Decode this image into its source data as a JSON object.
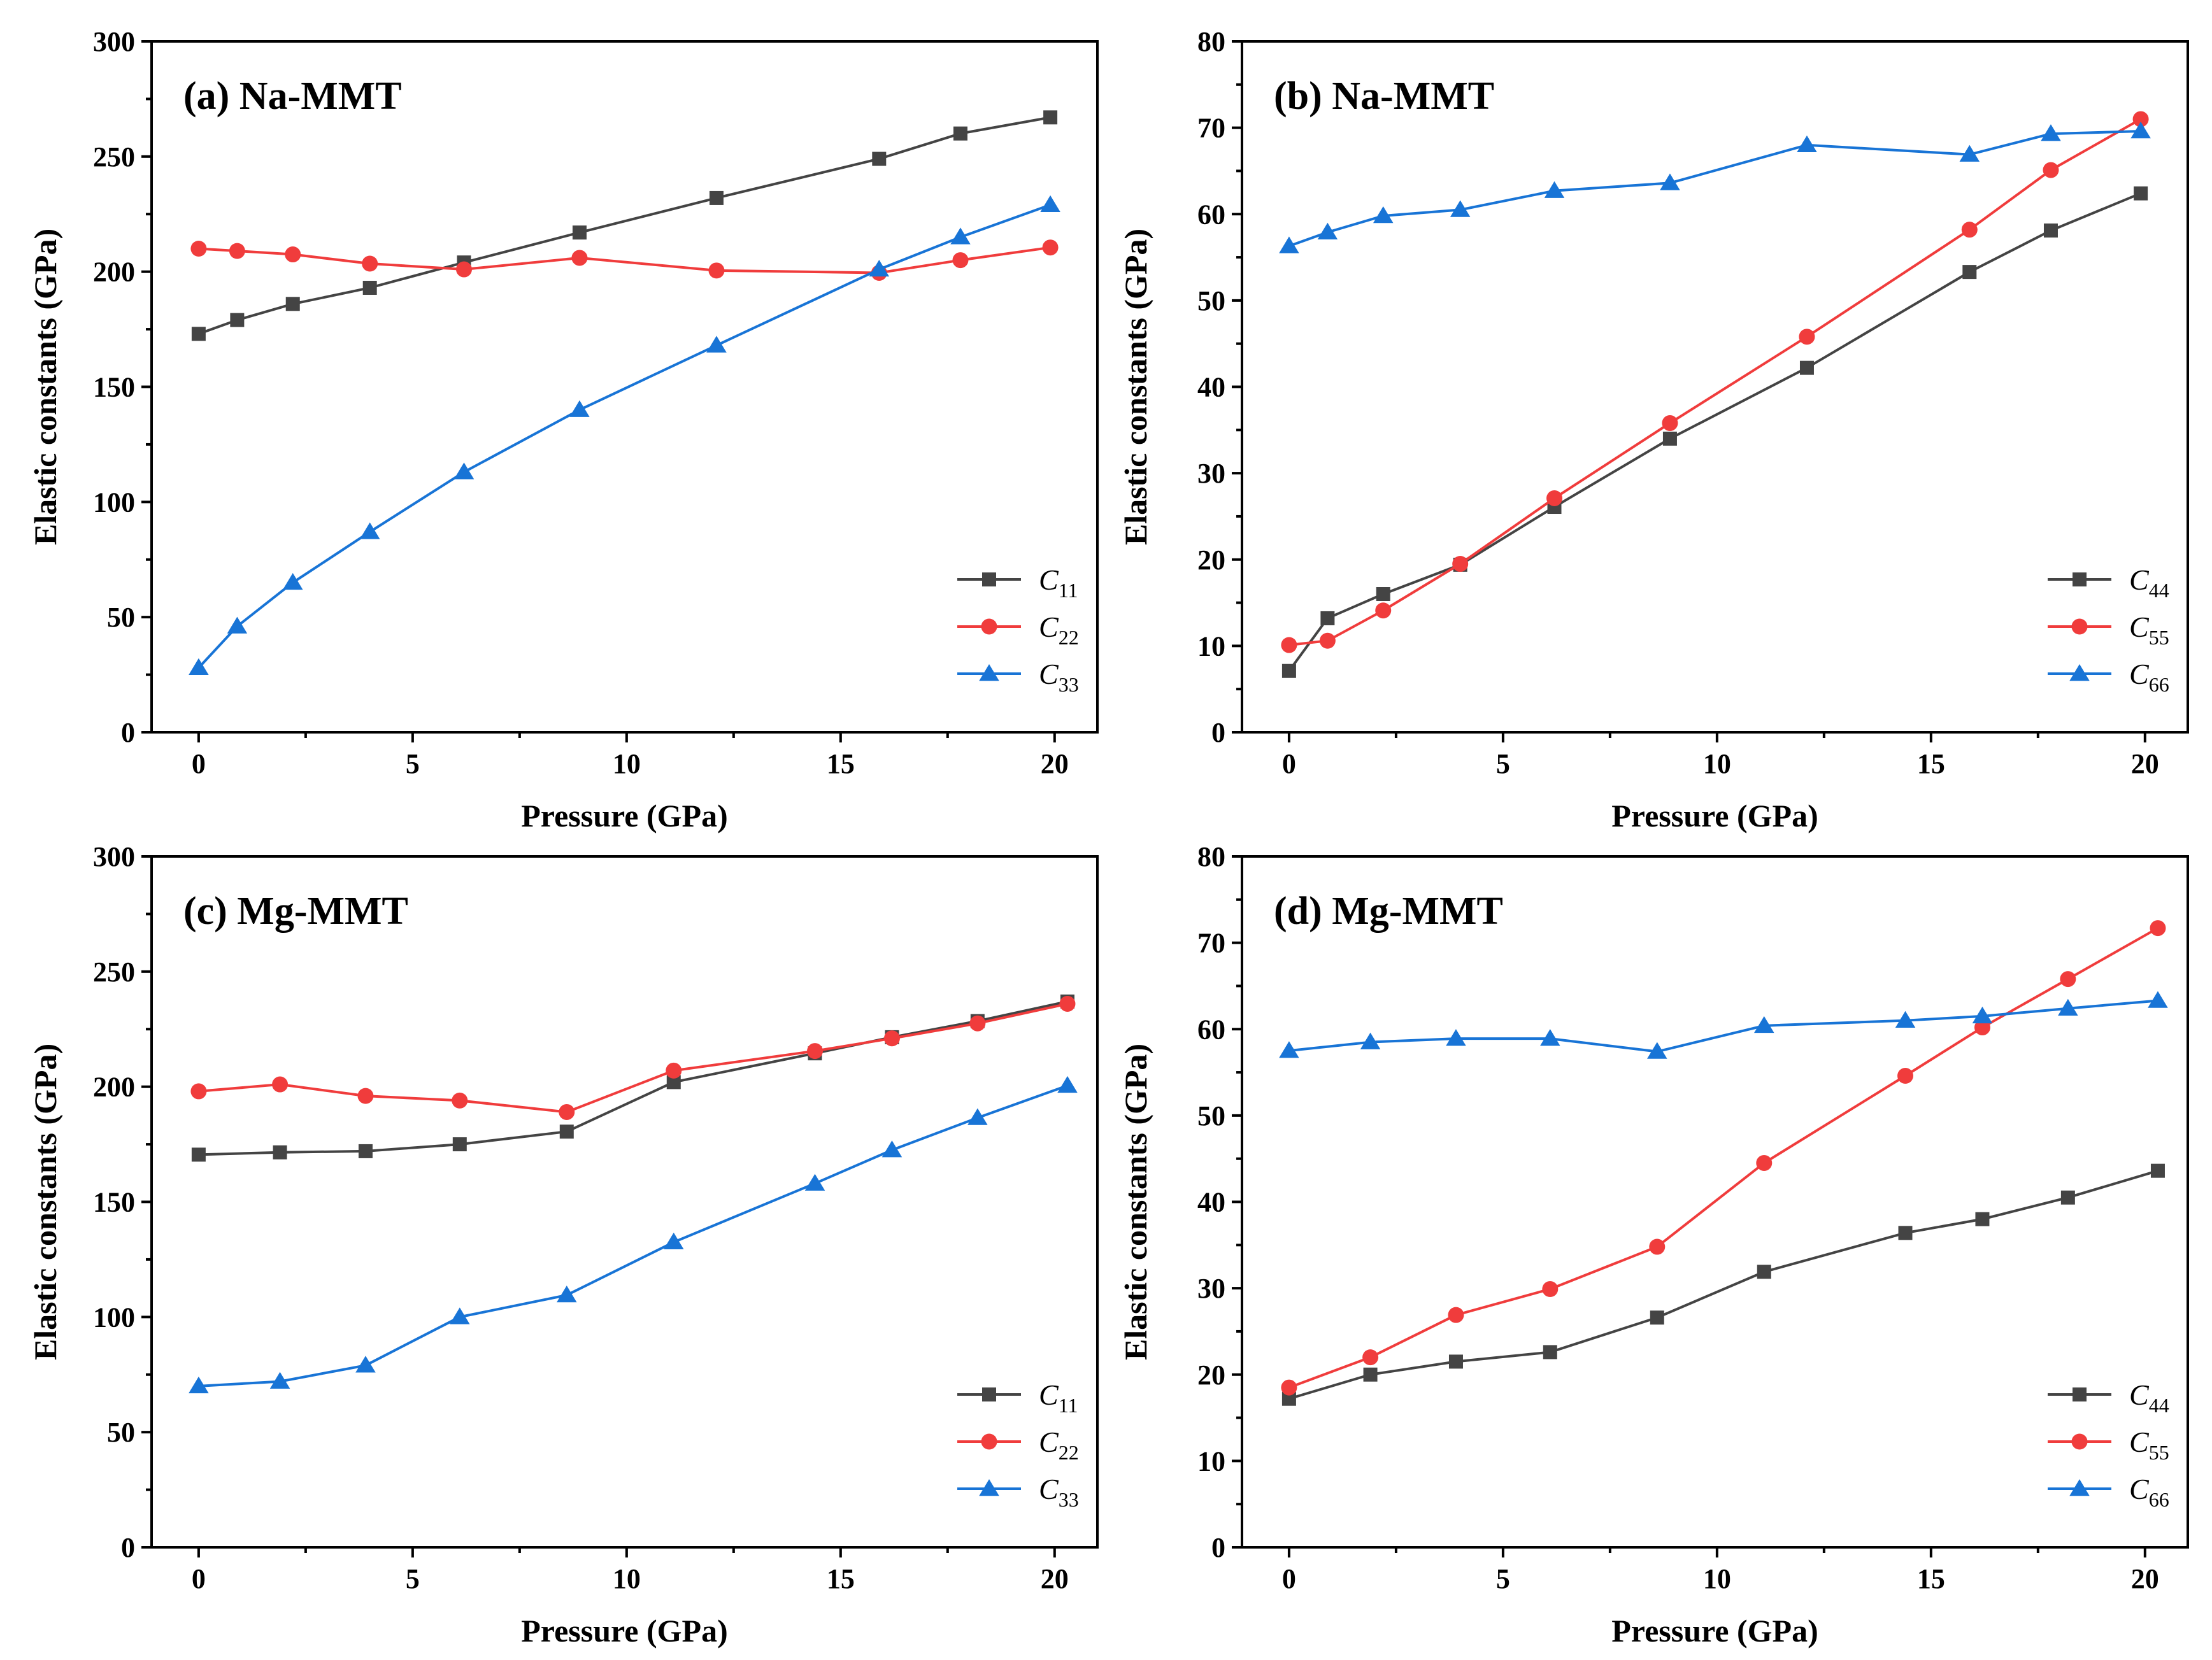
{
  "chart_data": [
    {
      "type": "line",
      "panel": "a",
      "title": "(a) Na-MMT",
      "xlabel": "Pressure (GPa)",
      "ylabel": "Elastic constants (GPa)",
      "xlim": [
        -1.1,
        21
      ],
      "ylim": [
        0,
        300
      ],
      "xticks": [
        "0",
        "5",
        "10",
        "15",
        "20"
      ],
      "yticks": [
        "0",
        "50",
        "100",
        "150",
        "200",
        "250",
        "300"
      ],
      "legend_position": "bottom-right",
      "series": [
        {
          "name": "C11",
          "letter": "C",
          "sub": "11",
          "color": "#444444",
          "marker": "square",
          "x": [
            0,
            0.9,
            2.2,
            4,
            6.2,
            8.9,
            12.1,
            15.9,
            17.8,
            19.9
          ],
          "y": [
            173,
            179,
            186,
            193,
            204,
            217,
            232,
            249,
            260,
            267
          ]
        },
        {
          "name": "C22",
          "letter": "C",
          "sub": "22",
          "color": "#f03c3c",
          "marker": "circle",
          "x": [
            0,
            0.9,
            2.2,
            4,
            6.2,
            8.9,
            12.1,
            15.9,
            17.8,
            19.9
          ],
          "y": [
            210,
            209,
            207.5,
            203.5,
            201,
            206,
            200.5,
            199.5,
            205,
            210.5
          ]
        },
        {
          "name": "C33",
          "letter": "C",
          "sub": "33",
          "color": "#1874d6",
          "marker": "triangle",
          "x": [
            0,
            0.9,
            2.2,
            4,
            6.2,
            8.9,
            12.1,
            15.9,
            17.8,
            19.9
          ],
          "y": [
            28,
            46,
            65,
            87,
            113,
            140,
            168,
            201,
            215,
            229
          ]
        }
      ]
    },
    {
      "type": "line",
      "panel": "b",
      "title": "(b) Na-MMT",
      "xlabel": "Pressure (GPa)",
      "ylabel": "Elastic constants (GPa)",
      "xlim": [
        -1.1,
        21
      ],
      "ylim": [
        0,
        80
      ],
      "xticks": [
        "0",
        "5",
        "10",
        "15",
        "20"
      ],
      "yticks": [
        "0",
        "10",
        "20",
        "30",
        "40",
        "50",
        "60",
        "70",
        "80"
      ],
      "legend_position": "bottom-right",
      "series": [
        {
          "name": "C44",
          "letter": "C",
          "sub": "44",
          "color": "#444444",
          "marker": "square",
          "x": [
            0,
            0.9,
            2.2,
            4,
            6.2,
            8.9,
            12.1,
            15.9,
            17.8,
            19.9
          ],
          "y": [
            7.1,
            13.2,
            16,
            19.4,
            26.1,
            34,
            42.2,
            53.3,
            58.1,
            62.4
          ]
        },
        {
          "name": "C55",
          "letter": "C",
          "sub": "55",
          "color": "#f03c3c",
          "marker": "circle",
          "x": [
            0,
            0.9,
            2.2,
            4,
            6.2,
            8.9,
            12.1,
            15.9,
            17.8,
            19.9
          ],
          "y": [
            10.1,
            10.6,
            14.1,
            19.5,
            27.1,
            35.8,
            45.8,
            58.2,
            65.1,
            71
          ]
        },
        {
          "name": "C66",
          "letter": "C",
          "sub": "66",
          "color": "#1874d6",
          "marker": "triangle",
          "x": [
            0,
            0.9,
            2.2,
            4,
            6.2,
            8.9,
            12.1,
            15.9,
            17.8,
            19.9
          ],
          "y": [
            56.3,
            57.9,
            59.8,
            60.5,
            62.7,
            63.6,
            68,
            66.9,
            69.3,
            69.6
          ]
        }
      ]
    },
    {
      "type": "line",
      "panel": "c",
      "title": "(c) Mg-MMT",
      "xlabel": "Pressure (GPa)",
      "ylabel": "Elastic constants (GPa)",
      "xlim": [
        -1.1,
        21
      ],
      "ylim": [
        0,
        300
      ],
      "xticks": [
        "0",
        "5",
        "10",
        "15",
        "20"
      ],
      "yticks": [
        "0",
        "50",
        "100",
        "150",
        "200",
        "250",
        "300"
      ],
      "legend_position": "bottom-right",
      "series": [
        {
          "name": "C11",
          "letter": "C",
          "sub": "11",
          "color": "#444444",
          "marker": "square",
          "x": [
            0,
            1.9,
            3.9,
            6.1,
            8.6,
            11.1,
            14.4,
            16.2,
            18.2,
            20.3
          ],
          "y": [
            170.5,
            171.5,
            172,
            175,
            180.5,
            202,
            214.5,
            221.5,
            228.5,
            237
          ]
        },
        {
          "name": "C22",
          "letter": "C",
          "sub": "22",
          "color": "#f03c3c",
          "marker": "circle",
          "x": [
            0,
            1.9,
            3.9,
            6.1,
            8.6,
            11.1,
            14.4,
            16.2,
            18.2,
            20.3
          ],
          "y": [
            198,
            201,
            196,
            194,
            189,
            207,
            215.5,
            221,
            227.5,
            236
          ]
        },
        {
          "name": "C33",
          "letter": "C",
          "sub": "33",
          "color": "#1874d6",
          "marker": "triangle",
          "x": [
            0,
            1.9,
            3.9,
            6.1,
            8.6,
            11.1,
            14.4,
            16.2,
            18.2,
            20.3
          ],
          "y": [
            70,
            72,
            79,
            100,
            109.5,
            132.5,
            158,
            172.5,
            186.5,
            200.5
          ]
        }
      ]
    },
    {
      "type": "line",
      "panel": "d",
      "title": "(d) Mg-MMT",
      "xlabel": "Pressure (GPa)",
      "ylabel": "Elastic constants (GPa)",
      "xlim": [
        -1.1,
        21
      ],
      "ylim": [
        0,
        80
      ],
      "xticks": [
        "0",
        "5",
        "10",
        "15",
        "20"
      ],
      "yticks": [
        "0",
        "10",
        "20",
        "30",
        "40",
        "50",
        "60",
        "70",
        "80"
      ],
      "legend_position": "bottom-right",
      "series": [
        {
          "name": "C44",
          "letter": "C",
          "sub": "44",
          "color": "#444444",
          "marker": "square",
          "x": [
            0,
            1.9,
            3.9,
            6.1,
            8.6,
            11.1,
            14.4,
            16.2,
            18.2,
            20.3
          ],
          "y": [
            17.2,
            20,
            21.5,
            22.6,
            26.6,
            31.9,
            36.4,
            38,
            40.5,
            43.6
          ]
        },
        {
          "name": "C55",
          "letter": "C",
          "sub": "55",
          "color": "#f03c3c",
          "marker": "circle",
          "x": [
            0,
            1.9,
            3.9,
            6.1,
            8.6,
            11.1,
            14.4,
            16.2,
            18.2,
            20.3
          ],
          "y": [
            18.5,
            22,
            26.9,
            29.9,
            34.8,
            44.5,
            54.6,
            60.2,
            65.8,
            71.7
          ]
        },
        {
          "name": "C66",
          "letter": "C",
          "sub": "66",
          "color": "#1874d6",
          "marker": "triangle",
          "x": [
            0,
            1.9,
            3.9,
            6.1,
            8.6,
            11.1,
            14.4,
            16.2,
            18.2,
            20.3
          ],
          "y": [
            57.5,
            58.5,
            58.9,
            58.9,
            57.4,
            60.4,
            61,
            61.5,
            62.4,
            63.3
          ]
        }
      ]
    }
  ]
}
